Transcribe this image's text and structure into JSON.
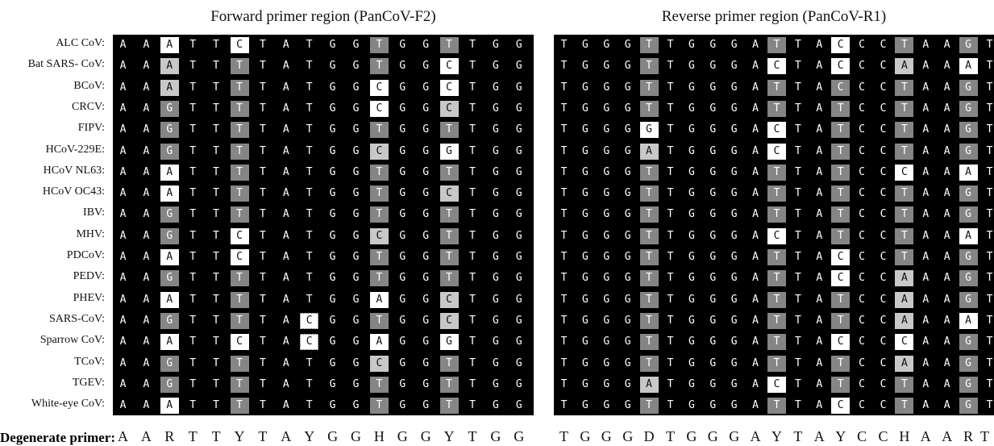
{
  "titles": {
    "forward": "Forward primer region (PanCoV-F2)",
    "reverse": "Reverse primer region (PanCoV-R1)"
  },
  "species": [
    "ALC CoV:",
    "Bat SARS- CoV:",
    "BCoV:",
    "CRCV:",
    "FIPV:",
    "HCoV-229E:",
    "HCoV NL63:",
    "HCoV OC43:",
    "IBV:",
    "MHV:",
    "PDCoV:",
    "PEDV:",
    "PHEV:",
    "SARS-CoV:",
    "Sparrow CoV:",
    "TCoV:",
    "TGEV:",
    "White-eye CoV:"
  ],
  "forward_rows": [
    "AAATTCTATGGTGGTTGG",
    "AAATTTTATGGTGGCTGG",
    "AAATTTTATGGCGGCTGG",
    "AAGTTTTATGGCGGCTGG",
    "AAGTTTTATGGTGGTTGG",
    "AAGTTTTATGGCGGGTGG",
    "AAATTTTATGGTGGTTGG",
    "AAATTTTATGGTGGCTGG",
    "AAGTTTTATGGTGGTTGG",
    "AAGTTCTATGGCGGTTGG",
    "AAATTCTATGGTGGTTGG",
    "AAGTTTTATGGTGGTTGG",
    "AAATTTTATGGAGGCTGG",
    "AAGTTTTACGGTGGCTGG",
    "AAATTCTACGGAGGGTGG",
    "AAGTTTTATGGCGGTTGG",
    "AAGTTTTATGGTGGTTGG",
    "AAATTTTATGGTGGTTGG"
  ],
  "forward_shades": [
    "kkwkkwkkkkkdkkdkkk",
    "kklkkdkkkkkdkkwkkk",
    "kklkkdkkkkkwkkwkkk",
    "kkdkkdkkkkkwkklkkk",
    "kkdkkdkkkkkdkkdkkk",
    "kkdkkdkkkkklkkwkkk",
    "kkwkkdkkkkkdkkdkkk",
    "kkwkkdkkkkkdkklkkk",
    "kkdkkdkkkkkdkkdkkk",
    "kkdkkwkkkkklkkdkkk",
    "kkwkkwkkkkkdkkdkkk",
    "kkdkkdkkkkkdkkdkkk",
    "kkwkkdkkkkkwkklkkk",
    "kkdkkdkkskkdkklkkk",
    "kkwkkwkkskkwkkwkkk",
    "kkdkkdkkkkklkkdkkk",
    "kkdkkdkkkkkdkkdkkk",
    "kkwkkdkkkkkdkkdkkk"
  ],
  "reverse_rows": [
    "TGGGTTGGGATTACCCTAAGT",
    "TGGGTTGGGACTACCCAAAAT",
    "TGGGTTGGGATTACCCTAAGT",
    "TGGGTTGGGATTATCCTAAGT",
    "TGGGGTGGGACTATCCTAAGT",
    "TGGGATGGGACTATCCTAAGT",
    "TGGGTTGGGATTATCCCAAAT",
    "TGGGTTGGGATTATCCTAAGT",
    "TGGGTTGGGATTATCCTAAGT",
    "TGGGTTGGGACTATCCTAAAT",
    "TGGGTTGGGATTACCCTAAGT",
    "TGGGTTGGGATTACCCAAAGT",
    "TGGGTTGGGATTATCCAAAGT",
    "TGGGTTGGGATTATCCAAAAT",
    "TGGGTTGGGATTACCCCAAGT",
    "TGGGTTGGGATTATCCAAAGT",
    "TGGGATGGGACTATCCTAAGT",
    "TGGGTTGGGATTACCCTAAGT"
  ],
  "reverse_shades": [
    "kkkkdkkkkkdkkwkkdkkdk",
    "kkkkdkkkkkwkkwkklkkwk",
    "kkkkdkkkkkdkkdkkdkkdk",
    "kkkkdkkkkkdkkdkkdkkdk",
    "kkkkwkkkkkwkkdkkdkkdk",
    "kkkklkkkkkwkkdkkdkkdk",
    "kkkkdkkkkkdkkdkkwkkwk",
    "kkkkdkkkkkdkkdkkdkkdk",
    "kkkkdkkkkkdkkdkkdkkdk",
    "kkkkdkkkkkwkkdkkdkkwk",
    "kkkkdkkkkkdkkwkkdkkdk",
    "kkkkdkkkkkdkkwkklkkdk",
    "kkkkdkkkkkdkkdkklkkdk",
    "kkkkdkkkkkdkkdkklkkwk",
    "kkkkdkkkkkdkkwkkwkkdk",
    "kkkkdkkkkkdkkdkklkkdk",
    "kkkklkkkkkwkkdkkdkkdk",
    "kkkkdkkkkkdkkwkkdkkdk"
  ],
  "degenerate": {
    "label": "Degenerate primer:",
    "forward": [
      "A",
      "A",
      "R",
      "T",
      "T",
      "Y",
      "T",
      "A",
      "Y",
      "G",
      "G",
      "H",
      "G",
      "G",
      "Y",
      "T",
      "G",
      "G"
    ],
    "reverse": [
      "T",
      "G",
      "G",
      "G",
      "D",
      "T",
      "G",
      "G",
      "G",
      "A",
      "Y",
      "T",
      "A",
      "Y",
      "C",
      "C",
      "H",
      "A",
      "A",
      "R",
      "T"
    ]
  }
}
